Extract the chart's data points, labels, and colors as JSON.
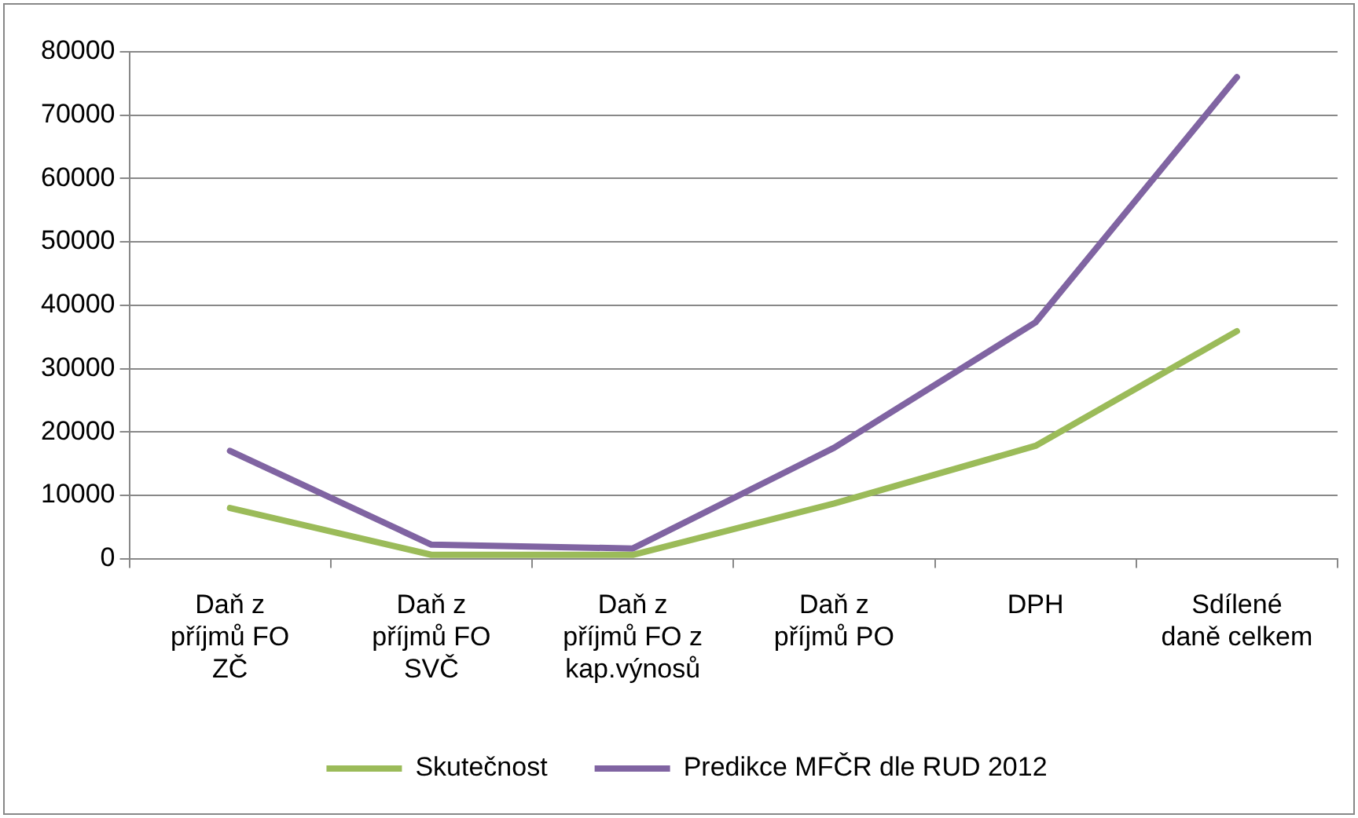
{
  "chart_data": {
    "type": "line",
    "categories": [
      "Daň z příjmů FO ZČ",
      "Daň z příjmů FO SVČ",
      "Daň z příjmů FO z kap.výnosů",
      "Daň z příjmů PO",
      "DPH",
      "Sdílené daně celkem"
    ],
    "series": [
      {
        "name": "Skutečnost",
        "color": "#9bbb59",
        "values": [
          8000,
          600,
          600,
          8700,
          17800,
          35900
        ]
      },
      {
        "name": "Predikce MFČR dle RUD 2012",
        "color": "#8064a2",
        "values": [
          17000,
          2200,
          1600,
          17500,
          37300,
          76000
        ]
      }
    ],
    "ylim": [
      0,
      80000
    ],
    "yticks": [
      0,
      10000,
      20000,
      30000,
      40000,
      50000,
      60000,
      70000,
      80000
    ],
    "grid": "y",
    "legend": "bottom",
    "marker": "none",
    "line_style": "solid"
  }
}
